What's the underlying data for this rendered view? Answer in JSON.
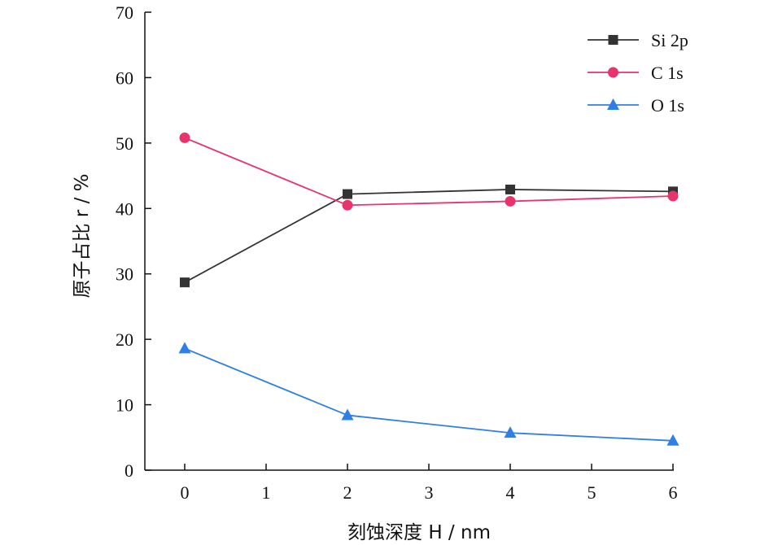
{
  "chart_data": {
    "type": "line",
    "title": "",
    "xlabel": "刻蚀深度 H / nm",
    "ylabel": "原子占比 r / %",
    "xlim": [
      -0.5,
      6
    ],
    "ylim": [
      0,
      70
    ],
    "xticks": [
      "0",
      "1",
      "2",
      "3",
      "4",
      "5",
      "6"
    ],
    "yticks": [
      "0",
      "10",
      "20",
      "30",
      "40",
      "50",
      "60",
      "70"
    ],
    "x": [
      0,
      2,
      4,
      6
    ],
    "grid": false,
    "legend_position": "top-right",
    "series": [
      {
        "name": "Si 2p",
        "values": [
          28.7,
          42.2,
          42.9,
          42.6
        ],
        "color": "#333333",
        "marker": "square"
      },
      {
        "name": "C 1s",
        "values": [
          50.8,
          40.5,
          41.1,
          41.9
        ],
        "color": "#e8336d",
        "marker": "circle"
      },
      {
        "name": "O 1s",
        "values": [
          18.6,
          8.4,
          5.7,
          4.5
        ],
        "color": "#2f7fe8",
        "marker": "triangle"
      }
    ]
  }
}
